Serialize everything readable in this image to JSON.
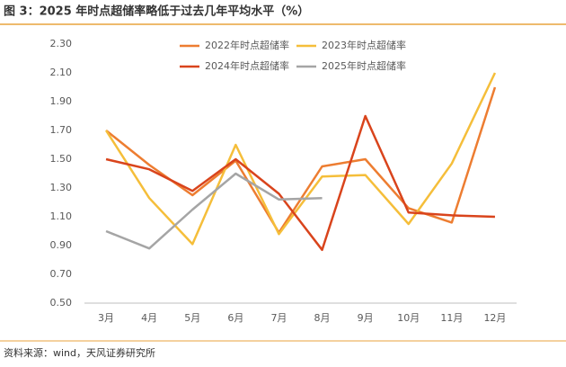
{
  "chart_data": {
    "type": "line",
    "title": "图 3：2025 年时点超储率略低于过去几年平均水平（%）",
    "source": "资料来源：wind，天风证券研究所",
    "categories": [
      "3月",
      "4月",
      "5月",
      "6月",
      "7月",
      "8月",
      "9月",
      "10月",
      "11月",
      "12月"
    ],
    "series": [
      {
        "name": "2022年时点超储率",
        "color": "#ED7D31",
        "values": [
          1.7,
          1.46,
          1.25,
          1.49,
          0.99,
          1.45,
          1.5,
          1.16,
          1.06,
          2.0
        ]
      },
      {
        "name": "2023年时点超储率",
        "color": "#F5BE3A",
        "values": [
          1.7,
          1.23,
          0.91,
          1.6,
          0.98,
          1.38,
          1.39,
          1.05,
          1.47,
          2.1
        ]
      },
      {
        "name": "2024年时点超储率",
        "color": "#D9441C",
        "values": [
          1.5,
          1.43,
          1.28,
          1.5,
          1.26,
          0.87,
          1.8,
          1.13,
          1.11,
          1.1
        ]
      },
      {
        "name": "2025年时点超储率",
        "color": "#A5A5A5",
        "values": [
          1.0,
          0.88,
          1.15,
          1.4,
          1.22,
          1.23,
          null,
          null,
          null,
          null
        ]
      }
    ],
    "ylim": [
      0.5,
      2.3
    ],
    "yticks": [
      {
        "value": 0.5,
        "label": "0.50"
      },
      {
        "value": 0.7,
        "label": "0.70"
      },
      {
        "value": 0.9,
        "label": "0.90"
      },
      {
        "value": 1.1,
        "label": "1.10"
      },
      {
        "value": 1.3,
        "label": "1.30"
      },
      {
        "value": 1.5,
        "label": "1.50"
      },
      {
        "value": 1.7,
        "label": "1.70"
      },
      {
        "value": 1.9,
        "label": "1.90"
      },
      {
        "value": 2.1,
        "label": "2.10"
      },
      {
        "value": 2.3,
        "label": "2.30"
      }
    ]
  }
}
